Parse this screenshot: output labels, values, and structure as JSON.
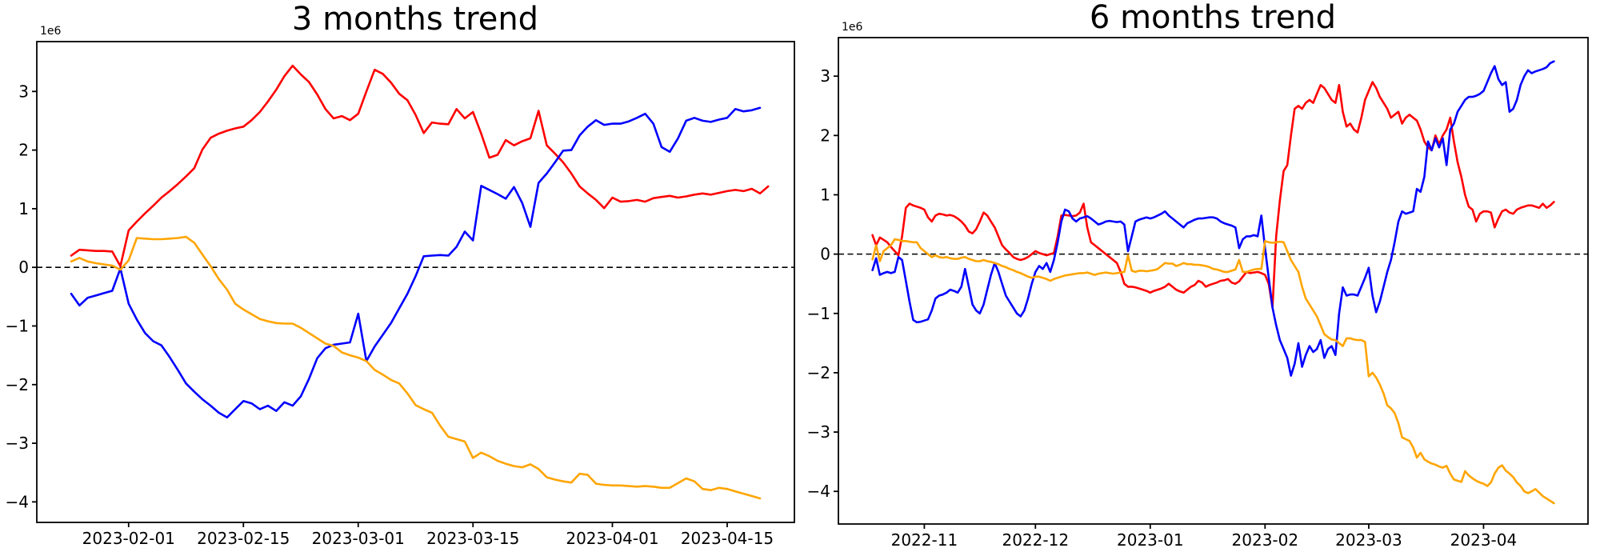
{
  "figure": {
    "background": "#ffffff"
  },
  "chart_data": [
    {
      "type": "line",
      "title": "3 months trend",
      "y_offset_label": "1e6",
      "x_start_date": "2023-01-25",
      "frequency": "daily",
      "x_tick_labels": [
        "2023-02-01",
        "2023-02-15",
        "2023-03-01",
        "2023-03-15",
        "2023-04-01",
        "2023-04-15"
      ],
      "x_tick_day_indices": [
        7,
        21,
        35,
        49,
        66,
        80
      ],
      "y_tick_values": [
        3,
        2,
        1,
        0,
        -1,
        -2,
        -3,
        -4
      ],
      "y_tick_labels": [
        "3",
        "2",
        "1",
        "0",
        "−1",
        "−2",
        "−3",
        "−4"
      ],
      "xlim_day_index": [
        -4.2,
        88.2
      ],
      "ylim_millions": [
        -4.35,
        3.85
      ],
      "grid": false,
      "legend": null,
      "zero_line": {
        "style": "dashed",
        "color": "#000000"
      },
      "series": [
        {
          "name": "red",
          "color": "#ff0000",
          "unit": "1e6",
          "values": [
            0.2,
            0.3,
            0.29,
            0.28,
            0.28,
            0.27,
            0.02,
            0.63,
            0.78,
            0.92,
            1.05,
            1.19,
            1.3,
            1.42,
            1.55,
            1.69,
            2.01,
            2.21,
            2.28,
            2.33,
            2.37,
            2.4,
            2.51,
            2.65,
            2.83,
            3.03,
            3.26,
            3.44,
            3.29,
            3.16,
            2.95,
            2.7,
            2.54,
            2.58,
            2.51,
            2.62,
            3.0,
            3.37,
            3.3,
            3.15,
            2.96,
            2.85,
            2.6,
            2.29,
            2.47,
            2.45,
            2.44,
            2.7,
            2.54,
            2.65,
            2.28,
            1.87,
            1.92,
            2.17,
            2.08,
            2.15,
            2.2,
            2.67,
            2.08,
            1.94,
            1.79,
            1.6,
            1.38,
            1.26,
            1.15,
            1.01,
            1.19,
            1.12,
            1.13,
            1.15,
            1.12,
            1.18,
            1.2,
            1.22,
            1.19,
            1.21,
            1.24,
            1.26,
            1.24,
            1.27,
            1.3,
            1.32,
            1.3,
            1.34,
            1.26,
            1.38
          ]
        },
        {
          "name": "blue",
          "color": "#0000ff",
          "unit": "1e6",
          "values": [
            -0.45,
            -0.65,
            -0.52,
            -0.48,
            -0.44,
            -0.4,
            -0.02,
            -0.62,
            -0.89,
            -1.12,
            -1.26,
            -1.33,
            -1.53,
            -1.75,
            -1.98,
            -2.12,
            -2.25,
            -2.36,
            -2.48,
            -2.56,
            -2.42,
            -2.28,
            -2.32,
            -2.42,
            -2.36,
            -2.45,
            -2.3,
            -2.36,
            -2.2,
            -1.9,
            -1.55,
            -1.38,
            -1.32,
            -1.3,
            -1.28,
            -0.79,
            -1.6,
            -1.35,
            -1.15,
            -0.95,
            -0.7,
            -0.45,
            -0.15,
            0.19,
            0.2,
            0.21,
            0.2,
            0.35,
            0.61,
            0.46,
            1.39,
            1.32,
            1.25,
            1.17,
            1.37,
            1.1,
            0.69,
            1.44,
            1.6,
            1.79,
            1.99,
            2.0,
            2.25,
            2.4,
            2.51,
            2.43,
            2.45,
            2.45,
            2.49,
            2.55,
            2.62,
            2.45,
            2.05,
            1.97,
            2.2,
            2.5,
            2.55,
            2.5,
            2.48,
            2.52,
            2.55,
            2.7,
            2.66,
            2.68,
            2.72
          ]
        },
        {
          "name": "orange",
          "color": "#ffa500",
          "unit": "1e6",
          "values": [
            0.1,
            0.16,
            0.1,
            0.07,
            0.05,
            0.03,
            -0.04,
            0.12,
            0.5,
            0.49,
            0.48,
            0.48,
            0.49,
            0.5,
            0.52,
            0.42,
            0.22,
            0.02,
            -0.2,
            -0.38,
            -0.62,
            -0.72,
            -0.8,
            -0.88,
            -0.92,
            -0.95,
            -0.96,
            -0.96,
            -1.03,
            -1.12,
            -1.21,
            -1.3,
            -1.34,
            -1.45,
            -1.5,
            -1.54,
            -1.6,
            -1.75,
            -1.83,
            -1.92,
            -1.98,
            -2.15,
            -2.35,
            -2.42,
            -2.48,
            -2.7,
            -2.89,
            -2.93,
            -2.97,
            -3.25,
            -3.16,
            -3.22,
            -3.3,
            -3.35,
            -3.39,
            -3.41,
            -3.36,
            -3.44,
            -3.58,
            -3.62,
            -3.65,
            -3.67,
            -3.52,
            -3.54,
            -3.69,
            -3.71,
            -3.72,
            -3.72,
            -3.73,
            -3.74,
            -3.73,
            -3.74,
            -3.76,
            -3.76,
            -3.68,
            -3.6,
            -3.65,
            -3.78,
            -3.8,
            -3.76,
            -3.78,
            -3.82,
            -3.86,
            -3.9,
            -3.94
          ]
        }
      ]
    },
    {
      "type": "line",
      "title": "6 months trend",
      "y_offset_label": "1e6",
      "x_start_date": "2022-10-18",
      "frequency": "daily",
      "x_tick_labels": [
        "2022-11",
        "2022-12",
        "2023-01",
        "2023-02",
        "2023-03",
        "2023-04"
      ],
      "x_tick_day_indices": [
        14,
        44,
        75,
        106,
        134,
        165
      ],
      "y_tick_values": [
        3,
        2,
        1,
        0,
        -1,
        -2,
        -3,
        -4
      ],
      "y_tick_labels": [
        "3",
        "2",
        "1",
        "0",
        "−1",
        "−2",
        "−3",
        "−4"
      ],
      "xlim_day_index": [
        -9.2,
        193.2
      ],
      "ylim_millions": [
        -4.55,
        3.65
      ],
      "grid": false,
      "legend": null,
      "zero_line": {
        "style": "dashed",
        "color": "#000000"
      },
      "series": [
        {
          "name": "red",
          "color": "#ff0000",
          "unit": "1e6",
          "values": [
            0.32,
            0.15,
            0.28,
            0.24,
            0.2,
            0.12,
            0.05,
            -0.02,
            0.3,
            0.78,
            0.85,
            0.82,
            0.8,
            0.78,
            0.75,
            0.62,
            0.55,
            0.65,
            0.68,
            0.67,
            0.65,
            0.66,
            0.64,
            0.6,
            0.55,
            0.48,
            0.38,
            0.35,
            0.42,
            0.55,
            0.7,
            0.65,
            0.55,
            0.45,
            0.3,
            0.15,
            0.08,
            0.02,
            -0.05,
            -0.08,
            -0.1,
            -0.08,
            -0.05,
            0.0,
            0.05,
            0.02,
            0.0,
            -0.02,
            0.0,
            0.02,
            0.3,
            0.65,
            0.66,
            0.65,
            0.64,
            0.65,
            0.7,
            0.85,
            0.45,
            0.2,
            0.15,
            0.1,
            0.05,
            0.0,
            -0.05,
            -0.1,
            -0.15,
            -0.3,
            -0.5,
            -0.55,
            -0.55,
            -0.56,
            -0.58,
            -0.6,
            -0.62,
            -0.65,
            -0.62,
            -0.6,
            -0.58,
            -0.55,
            -0.5,
            -0.55,
            -0.6,
            -0.63,
            -0.65,
            -0.6,
            -0.55,
            -0.52,
            -0.45,
            -0.48,
            -0.55,
            -0.52,
            -0.5,
            -0.48,
            -0.45,
            -0.44,
            -0.42,
            -0.48,
            -0.5,
            -0.46,
            -0.38,
            -0.3,
            -0.32,
            -0.31,
            -0.3,
            -0.32,
            -0.35,
            -0.5,
            -0.9,
            0.3,
            0.9,
            1.4,
            1.5,
            2.0,
            2.45,
            2.5,
            2.45,
            2.55,
            2.6,
            2.55,
            2.7,
            2.85,
            2.8,
            2.7,
            2.6,
            2.55,
            2.85,
            2.4,
            2.15,
            2.2,
            2.1,
            2.05,
            2.3,
            2.6,
            2.75,
            2.9,
            2.8,
            2.65,
            2.55,
            2.45,
            2.3,
            2.35,
            2.4,
            2.2,
            2.3,
            2.35,
            2.3,
            2.25,
            2.1,
            1.9,
            1.8,
            1.75,
            2.0,
            1.85,
            2.0,
            2.1,
            2.3,
            1.9,
            1.55,
            1.3,
            1.0,
            0.8,
            0.75,
            0.55,
            0.68,
            0.72,
            0.72,
            0.7,
            0.45,
            0.6,
            0.72,
            0.75,
            0.7,
            0.68,
            0.75,
            0.78,
            0.8,
            0.82,
            0.82,
            0.8,
            0.78,
            0.85,
            0.78,
            0.82,
            0.88
          ]
        },
        {
          "name": "blue",
          "color": "#0000ff",
          "unit": "1e6",
          "values": [
            -0.27,
            -0.07,
            -0.35,
            -0.32,
            -0.3,
            -0.32,
            -0.3,
            -0.05,
            -0.1,
            -0.45,
            -0.8,
            -1.11,
            -1.15,
            -1.14,
            -1.12,
            -1.1,
            -0.95,
            -0.75,
            -0.7,
            -0.68,
            -0.65,
            -0.6,
            -0.62,
            -0.65,
            -0.55,
            -0.25,
            -0.55,
            -0.85,
            -0.95,
            -1.0,
            -0.85,
            -0.6,
            -0.35,
            -0.15,
            -0.3,
            -0.5,
            -0.7,
            -0.8,
            -0.9,
            -1.0,
            -1.05,
            -0.95,
            -0.75,
            -0.5,
            -0.3,
            -0.2,
            -0.25,
            -0.15,
            -0.3,
            -0.1,
            0.2,
            0.55,
            0.75,
            0.72,
            0.6,
            0.55,
            0.6,
            0.62,
            0.64,
            0.6,
            0.55,
            0.5,
            0.52,
            0.55,
            0.56,
            0.55,
            0.54,
            0.55,
            0.5,
            0.05,
            0.3,
            0.55,
            0.58,
            0.6,
            0.62,
            0.6,
            0.62,
            0.65,
            0.68,
            0.72,
            0.65,
            0.6,
            0.55,
            0.5,
            0.45,
            0.52,
            0.55,
            0.58,
            0.6,
            0.6,
            0.61,
            0.62,
            0.62,
            0.6,
            0.55,
            0.52,
            0.5,
            0.48,
            0.45,
            0.1,
            0.25,
            0.3,
            0.3,
            0.32,
            0.3,
            0.65,
            0.1,
            -0.4,
            -0.9,
            -1.2,
            -1.45,
            -1.6,
            -1.75,
            -2.05,
            -1.85,
            -1.5,
            -1.9,
            -1.7,
            -1.55,
            -1.65,
            -1.6,
            -1.45,
            -1.75,
            -1.6,
            -1.55,
            -1.7,
            -1.0,
            -0.56,
            -0.7,
            -0.68,
            -0.68,
            -0.7,
            -0.55,
            -0.4,
            -0.23,
            -0.7,
            -0.98,
            -0.8,
            -0.55,
            -0.3,
            -0.1,
            0.2,
            0.55,
            0.72,
            0.68,
            0.7,
            0.72,
            1.1,
            1.05,
            1.3,
            1.9,
            1.75,
            1.95,
            1.8,
            1.95,
            1.5,
            2.1,
            2.2,
            2.4,
            2.5,
            2.6,
            2.65,
            2.65,
            2.67,
            2.7,
            2.75,
            2.9,
            3.05,
            3.17,
            2.95,
            2.85,
            2.9,
            2.4,
            2.45,
            2.6,
            2.85,
            3.0,
            3.1,
            3.05,
            3.08,
            3.1,
            3.12,
            3.15,
            3.22,
            3.25
          ]
        },
        {
          "name": "orange",
          "color": "#ffa500",
          "unit": "1e6",
          "values": [
            -0.09,
            0.15,
            -0.12,
            0.05,
            0.1,
            0.15,
            0.25,
            0.24,
            0.22,
            0.22,
            0.21,
            0.2,
            0.2,
            0.1,
            0.05,
            0.0,
            -0.05,
            -0.02,
            -0.05,
            -0.06,
            -0.05,
            -0.07,
            -0.08,
            -0.08,
            -0.06,
            -0.05,
            -0.08,
            -0.1,
            -0.12,
            -0.12,
            -0.1,
            -0.12,
            -0.13,
            -0.15,
            -0.17,
            -0.2,
            -0.22,
            -0.25,
            -0.27,
            -0.3,
            -0.32,
            -0.35,
            -0.38,
            -0.4,
            -0.38,
            -0.38,
            -0.4,
            -0.42,
            -0.45,
            -0.42,
            -0.4,
            -0.38,
            -0.36,
            -0.35,
            -0.34,
            -0.33,
            -0.32,
            -0.32,
            -0.31,
            -0.33,
            -0.35,
            -0.33,
            -0.32,
            -0.31,
            -0.32,
            -0.33,
            -0.32,
            -0.31,
            -0.3,
            -0.02,
            -0.28,
            -0.3,
            -0.28,
            -0.28,
            -0.29,
            -0.28,
            -0.27,
            -0.25,
            -0.2,
            -0.15,
            -0.16,
            -0.16,
            -0.2,
            -0.18,
            -0.15,
            -0.17,
            -0.17,
            -0.18,
            -0.18,
            -0.19,
            -0.2,
            -0.22,
            -0.25,
            -0.26,
            -0.28,
            -0.3,
            -0.3,
            -0.28,
            -0.26,
            -0.1,
            -0.3,
            -0.3,
            -0.28,
            -0.26,
            -0.25,
            -0.25,
            0.22,
            0.2,
            0.19,
            0.2,
            0.21,
            0.2,
            0.05,
            -0.1,
            -0.2,
            -0.3,
            -0.55,
            -0.75,
            -0.85,
            -0.95,
            -1.05,
            -1.2,
            -1.35,
            -1.4,
            -1.44,
            -1.45,
            -1.5,
            -1.55,
            -1.42,
            -1.42,
            -1.44,
            -1.45,
            -1.45,
            -1.48,
            -2.06,
            -2.0,
            -2.08,
            -2.2,
            -2.35,
            -2.55,
            -2.6,
            -2.68,
            -2.85,
            -3.09,
            -3.12,
            -3.15,
            -3.26,
            -3.43,
            -3.35,
            -3.46,
            -3.5,
            -3.53,
            -3.55,
            -3.58,
            -3.6,
            -3.57,
            -3.7,
            -3.8,
            -3.82,
            -3.84,
            -3.66,
            -3.73,
            -3.78,
            -3.82,
            -3.85,
            -3.87,
            -3.91,
            -3.85,
            -3.7,
            -3.6,
            -3.56,
            -3.65,
            -3.7,
            -3.76,
            -3.85,
            -3.91,
            -4.0,
            -4.03,
            -4.0,
            -3.96,
            -4.02,
            -4.08,
            -4.12,
            -4.16,
            -4.2
          ]
        }
      ]
    }
  ]
}
